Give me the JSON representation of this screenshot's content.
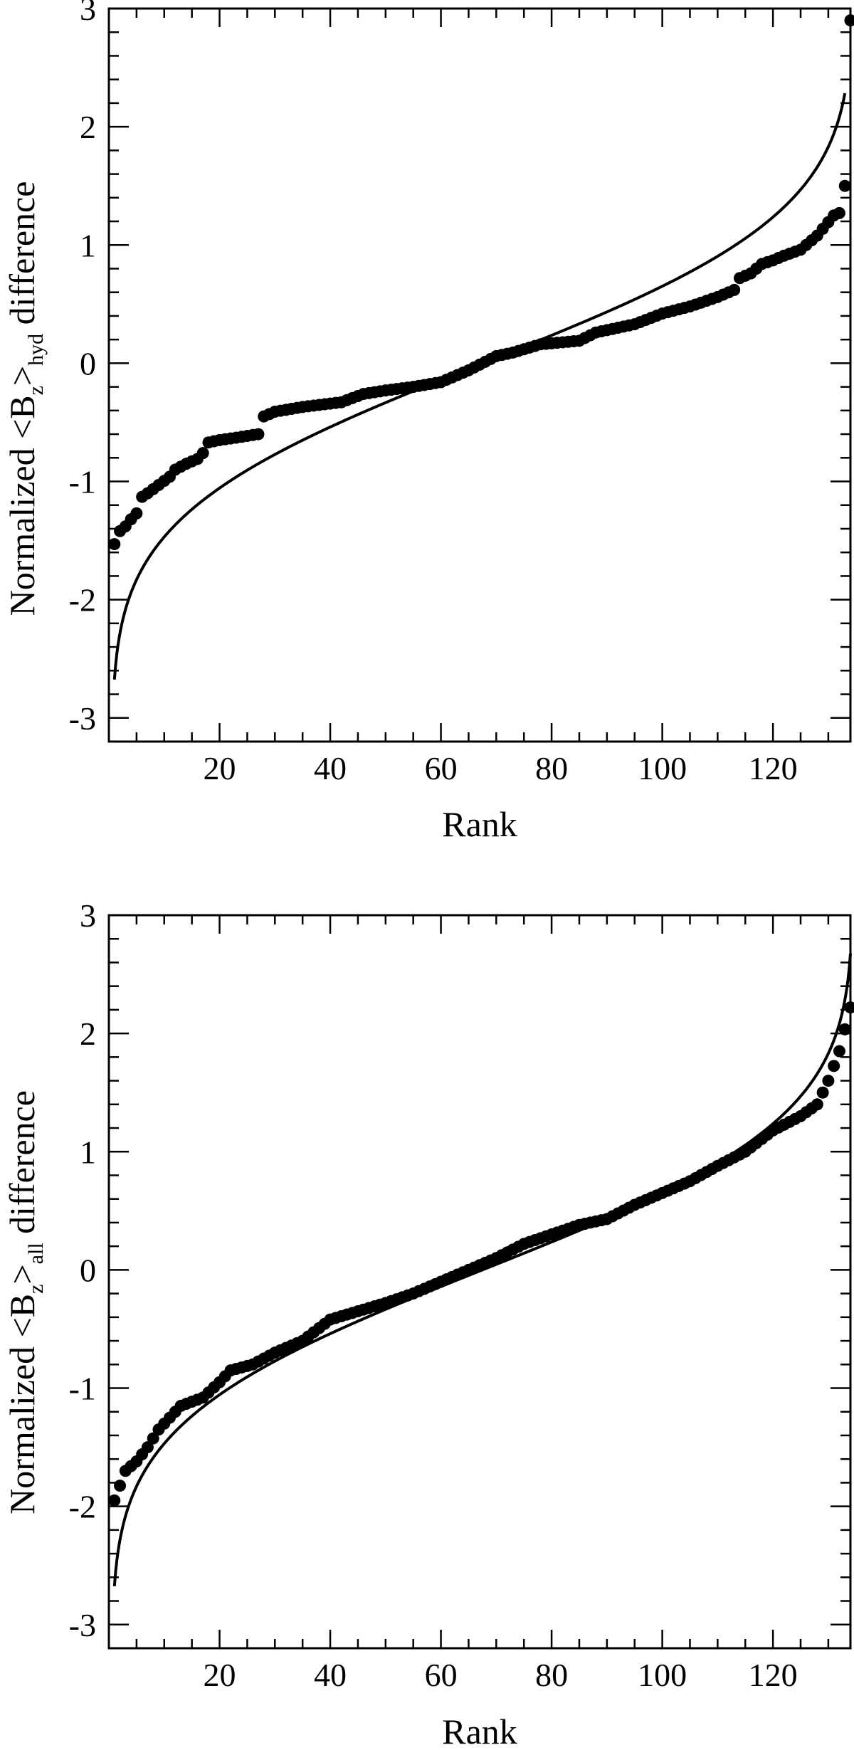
{
  "figure": {
    "background": "#ffffff",
    "ink": "#000000"
  },
  "chart_data": [
    {
      "type": "scatter",
      "xlabel": "Rank",
      "ylabel": {
        "prefix": "Normalized <B",
        "sub1": "z",
        "mid": ">",
        "sub2": "hyd",
        "suffix": " difference"
      },
      "xlim": [
        0,
        134
      ],
      "ylim": [
        -3.2,
        3.0
      ],
      "xticks": [
        20,
        40,
        60,
        80,
        100,
        120
      ],
      "yticks": [
        -3,
        -2,
        -1,
        0,
        1,
        2,
        3
      ],
      "n_points": 134,
      "series": [
        {
          "kind": "points",
          "marker": "filled-circle",
          "anchors": [
            [
              1,
              -1.53
            ],
            [
              2,
              -1.42
            ],
            [
              3,
              -1.38
            ],
            [
              4,
              -1.32
            ],
            [
              5,
              -1.27
            ],
            [
              6,
              -1.13
            ],
            [
              7,
              -1.1
            ],
            [
              9,
              -1.03
            ],
            [
              11,
              -0.96
            ],
            [
              12,
              -0.9
            ],
            [
              14,
              -0.85
            ],
            [
              16,
              -0.81
            ],
            [
              17,
              -0.76
            ],
            [
              18,
              -0.67
            ],
            [
              20,
              -0.65
            ],
            [
              23,
              -0.63
            ],
            [
              27,
              -0.6
            ],
            [
              28,
              -0.45
            ],
            [
              30,
              -0.41
            ],
            [
              35,
              -0.37
            ],
            [
              42,
              -0.33
            ],
            [
              46,
              -0.26
            ],
            [
              50,
              -0.23
            ],
            [
              55,
              -0.2
            ],
            [
              60,
              -0.16
            ],
            [
              65,
              -0.06
            ],
            [
              70,
              0.06
            ],
            [
              73,
              0.09
            ],
            [
              78,
              0.16
            ],
            [
              85,
              0.19
            ],
            [
              88,
              0.26
            ],
            [
              95,
              0.33
            ],
            [
              100,
              0.42
            ],
            [
              105,
              0.48
            ],
            [
              110,
              0.56
            ],
            [
              113,
              0.62
            ],
            [
              114,
              0.72
            ],
            [
              116,
              0.76
            ],
            [
              118,
              0.84
            ],
            [
              120,
              0.87
            ],
            [
              122,
              0.91
            ],
            [
              125,
              0.96
            ],
            [
              128,
              1.08
            ],
            [
              131,
              1.25
            ],
            [
              132,
              1.27
            ],
            [
              133,
              1.5
            ],
            [
              134,
              2.9
            ]
          ]
        },
        {
          "kind": "line",
          "description_curve": "expected normal quantiles",
          "sample_points": [
            [
              1,
              -2.42
            ],
            [
              34,
              -0.66
            ],
            [
              67,
              0.0
            ],
            [
              100,
              0.66
            ],
            [
              133,
              2.42
            ]
          ]
        }
      ]
    },
    {
      "type": "scatter",
      "xlabel": "Rank",
      "ylabel": {
        "prefix": "Normalized <B",
        "sub1": "z",
        "mid": ">",
        "sub2": "all",
        "suffix": " difference"
      },
      "xlim": [
        0,
        134
      ],
      "ylim": [
        -3.2,
        3.0
      ],
      "xticks": [
        20,
        40,
        60,
        80,
        100,
        120
      ],
      "yticks": [
        -3,
        -2,
        -1,
        0,
        1,
        2,
        3
      ],
      "n_points": 134,
      "series": [
        {
          "kind": "points",
          "marker": "filled-circle",
          "anchors": [
            [
              1,
              -1.95
            ],
            [
              3,
              -1.7
            ],
            [
              5,
              -1.62
            ],
            [
              7,
              -1.5
            ],
            [
              9,
              -1.35
            ],
            [
              11,
              -1.25
            ],
            [
              13,
              -1.15
            ],
            [
              17,
              -1.08
            ],
            [
              20,
              -0.95
            ],
            [
              22,
              -0.85
            ],
            [
              26,
              -0.8
            ],
            [
              30,
              -0.7
            ],
            [
              35,
              -0.6
            ],
            [
              40,
              -0.42
            ],
            [
              45,
              -0.35
            ],
            [
              50,
              -0.28
            ],
            [
              55,
              -0.2
            ],
            [
              60,
              -0.1
            ],
            [
              65,
              0.0
            ],
            [
              70,
              0.1
            ],
            [
              75,
              0.22
            ],
            [
              80,
              0.3
            ],
            [
              85,
              0.38
            ],
            [
              90,
              0.43
            ],
            [
              95,
              0.55
            ],
            [
              100,
              0.65
            ],
            [
              105,
              0.75
            ],
            [
              110,
              0.88
            ],
            [
              115,
              1.0
            ],
            [
              120,
              1.18
            ],
            [
              125,
              1.3
            ],
            [
              128,
              1.4
            ],
            [
              130,
              1.6
            ],
            [
              132,
              1.85
            ],
            [
              134,
              2.22
            ]
          ]
        },
        {
          "kind": "line",
          "description_curve": "expected normal quantiles",
          "sample_points": [
            [
              1,
              -2.42
            ],
            [
              34,
              -0.66
            ],
            [
              67,
              0.0
            ],
            [
              100,
              0.66
            ],
            [
              134,
              2.95
            ]
          ]
        }
      ]
    }
  ]
}
